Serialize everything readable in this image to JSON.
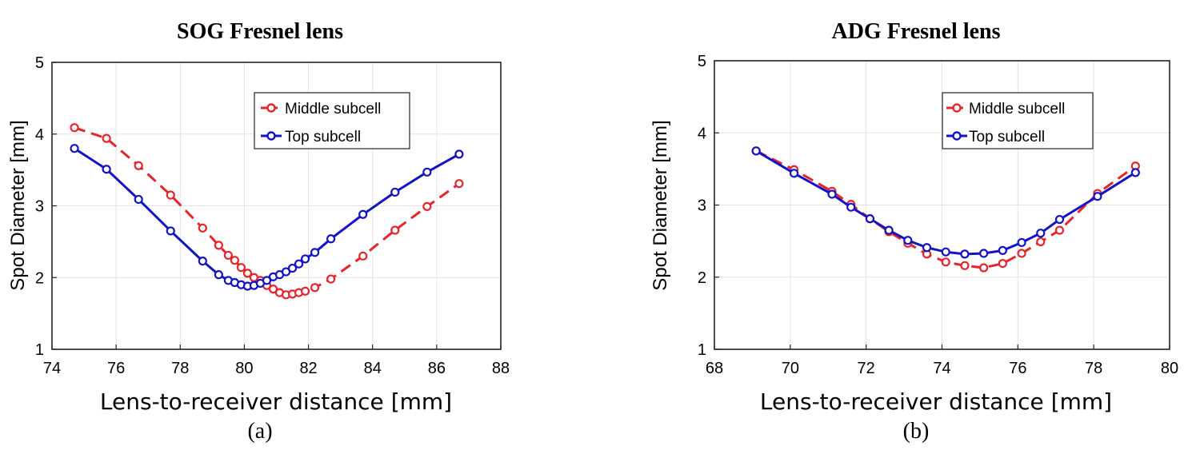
{
  "chart_data": [
    {
      "type": "line",
      "title": "SOG Fresnel lens",
      "caption": "(a)",
      "xlabel": "Lens-to-receiver distance [mm]",
      "ylabel": "Spot Diameter [mm]",
      "xlim": [
        74,
        88
      ],
      "ylim": [
        1,
        5
      ],
      "xticks": [
        74,
        76,
        78,
        80,
        82,
        84,
        86,
        88
      ],
      "yticks": [
        1,
        2,
        3,
        4,
        5
      ],
      "grid": true,
      "legend_position": "upper-right",
      "series": [
        {
          "name": "Middle subcell",
          "color": "#e8242a",
          "style": "dashed",
          "x": [
            74.7,
            75.7,
            76.7,
            77.7,
            78.7,
            79.2,
            79.5,
            79.7,
            79.9,
            80.1,
            80.3,
            80.5,
            80.7,
            80.9,
            81.1,
            81.3,
            81.5,
            81.7,
            81.9,
            82.2,
            82.7,
            83.7,
            84.7,
            85.7,
            86.7
          ],
          "y": [
            4.09,
            3.94,
            3.56,
            3.15,
            2.69,
            2.45,
            2.31,
            2.24,
            2.14,
            2.06,
            2.0,
            1.96,
            1.89,
            1.84,
            1.79,
            1.76,
            1.77,
            1.79,
            1.81,
            1.86,
            1.98,
            2.3,
            2.66,
            2.99,
            3.31
          ]
        },
        {
          "name": "Top subcell",
          "color": "#1212c8",
          "style": "solid",
          "x": [
            74.7,
            75.7,
            76.7,
            77.7,
            78.7,
            79.2,
            79.5,
            79.7,
            79.9,
            80.1,
            80.3,
            80.5,
            80.7,
            80.9,
            81.1,
            81.3,
            81.5,
            81.7,
            81.9,
            82.2,
            82.7,
            83.7,
            84.7,
            85.7,
            86.7
          ],
          "y": [
            3.8,
            3.51,
            3.09,
            2.65,
            2.23,
            2.04,
            1.96,
            1.93,
            1.9,
            1.88,
            1.89,
            1.92,
            1.96,
            2.01,
            2.04,
            2.08,
            2.13,
            2.19,
            2.26,
            2.35,
            2.54,
            2.88,
            3.19,
            3.47,
            3.72
          ]
        }
      ]
    },
    {
      "type": "line",
      "title": "ADG Fresnel lens",
      "caption": "(b)",
      "xlabel": "Lens-to-receiver distance [mm]",
      "ylabel": "Spot Diameter [mm]",
      "xlim": [
        68,
        80
      ],
      "ylim": [
        1,
        5
      ],
      "xticks": [
        68,
        70,
        72,
        74,
        76,
        78,
        80
      ],
      "yticks": [
        1,
        2,
        3,
        4,
        5
      ],
      "grid": true,
      "legend_position": "upper-right",
      "series": [
        {
          "name": "Middle subcell",
          "color": "#e8242a",
          "style": "dashed",
          "x": [
            69.1,
            70.1,
            71.1,
            71.6,
            72.1,
            72.6,
            73.1,
            73.6,
            74.1,
            74.6,
            75.1,
            75.6,
            76.1,
            76.6,
            77.1,
            78.1,
            79.1
          ],
          "y": [
            3.75,
            3.49,
            3.19,
            3.01,
            2.81,
            2.63,
            2.47,
            2.32,
            2.21,
            2.16,
            2.13,
            2.19,
            2.33,
            2.49,
            2.65,
            3.16,
            3.54
          ]
        },
        {
          "name": "Top subcell",
          "color": "#1212c8",
          "style": "solid",
          "x": [
            69.1,
            70.1,
            71.1,
            71.6,
            72.1,
            72.6,
            73.1,
            73.6,
            74.1,
            74.6,
            75.1,
            75.6,
            76.1,
            76.6,
            77.1,
            78.1,
            79.1
          ],
          "y": [
            3.75,
            3.44,
            3.15,
            2.97,
            2.81,
            2.65,
            2.51,
            2.41,
            2.35,
            2.32,
            2.33,
            2.37,
            2.48,
            2.61,
            2.8,
            3.12,
            3.45
          ]
        }
      ]
    }
  ]
}
